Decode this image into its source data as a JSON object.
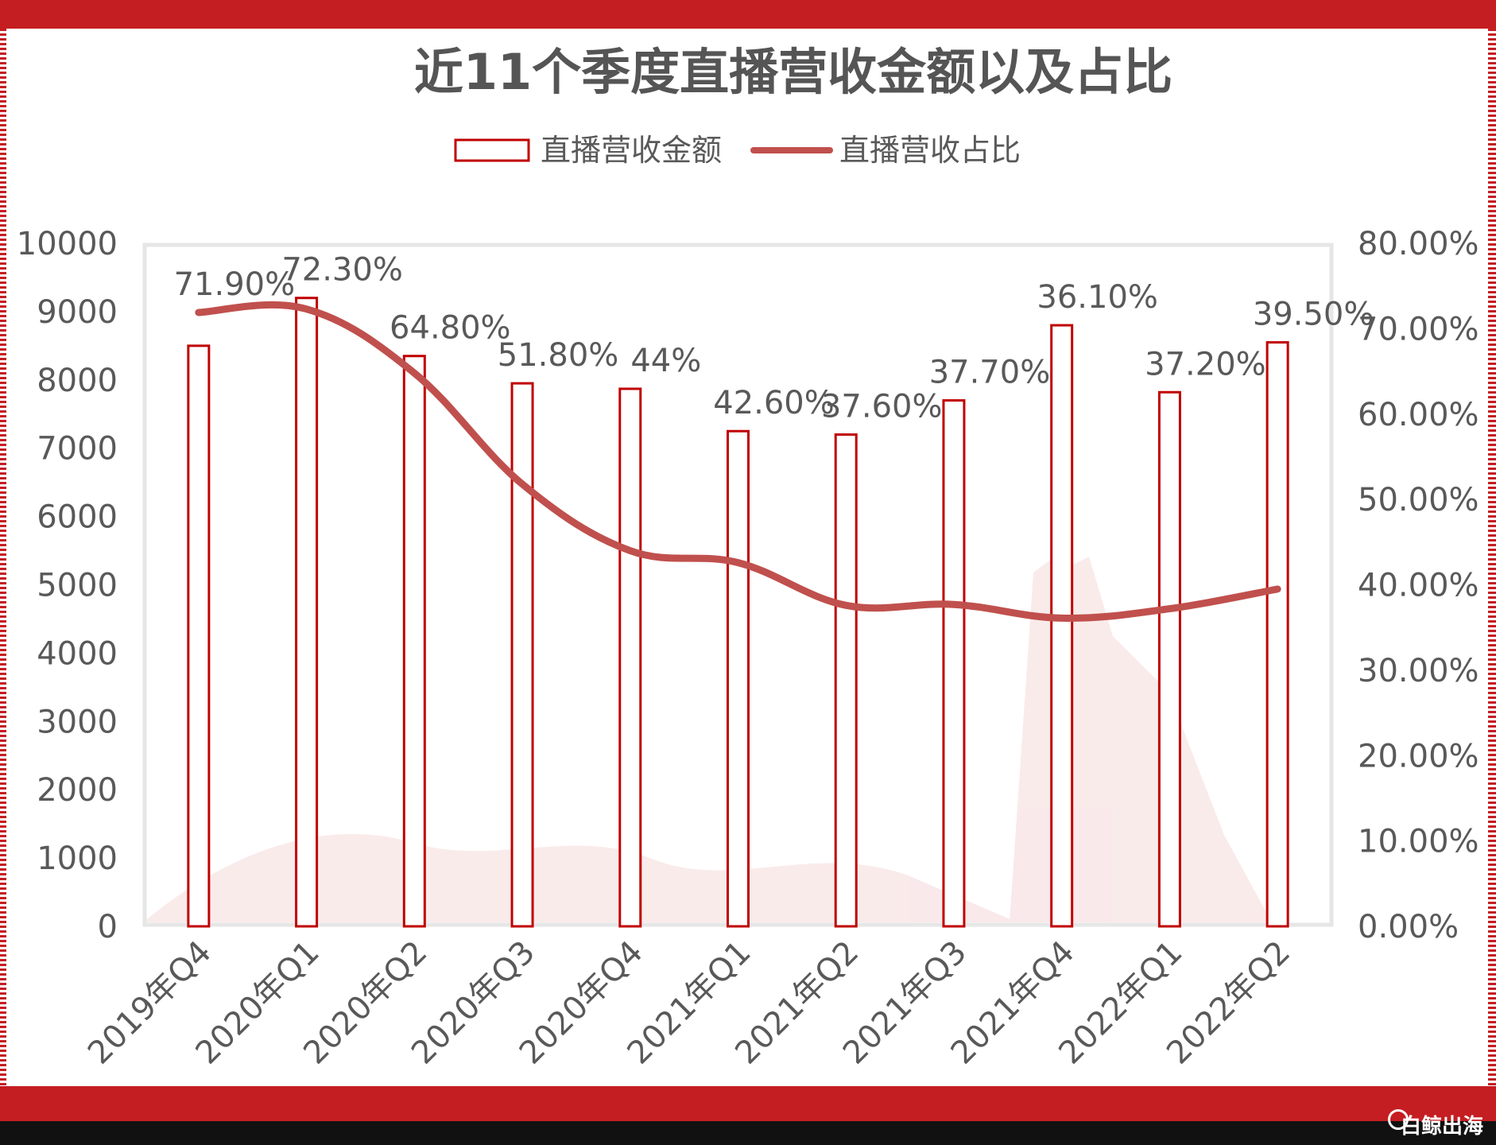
{
  "chart_data": {
    "type": "bar+line",
    "title": "近11个季度直播营收金额以及占比",
    "categories": [
      "2019年Q4",
      "2020年Q1",
      "2020年Q2",
      "2020年Q3",
      "2020年Q4",
      "2021年Q1",
      "2021年Q2",
      "2021年Q3",
      "2021年Q4",
      "2022年Q1",
      "2022年Q2"
    ],
    "series": [
      {
        "name": "直播营收金额",
        "type": "bar",
        "axis": "left",
        "values": [
          8500,
          9200,
          8350,
          7950,
          7870,
          7250,
          7200,
          7700,
          8800,
          7820,
          8550
        ]
      },
      {
        "name": "直播营收占比",
        "type": "line",
        "axis": "right",
        "values": [
          71.9,
          72.3,
          64.8,
          51.8,
          44,
          42.6,
          37.6,
          37.7,
          36.1,
          37.2,
          39.5
        ],
        "labels": [
          "71.90%",
          "72.30%",
          "64.80%",
          "51.80%",
          "44%",
          "42.60%",
          "37.60%",
          "37.70%",
          "36.10%",
          "37.20%",
          "39.50%"
        ]
      }
    ],
    "y_left": {
      "min": 0,
      "max": 10000,
      "ticks": [
        "0",
        "1000",
        "2000",
        "3000",
        "4000",
        "5000",
        "6000",
        "7000",
        "8000",
        "9000",
        "10000"
      ]
    },
    "y_right": {
      "min": 0,
      "max": 80,
      "ticks": [
        "0.00%",
        "10.00%",
        "20.00%",
        "30.00%",
        "40.00%",
        "50.00%",
        "60.00%",
        "70.00%",
        "80.00%"
      ]
    },
    "legend_position": "top",
    "grid": false
  },
  "colors": {
    "bar_stroke": "#c00000",
    "line": "#c0504d",
    "frame": "#c41e22"
  },
  "watermark": "白鲸出海"
}
